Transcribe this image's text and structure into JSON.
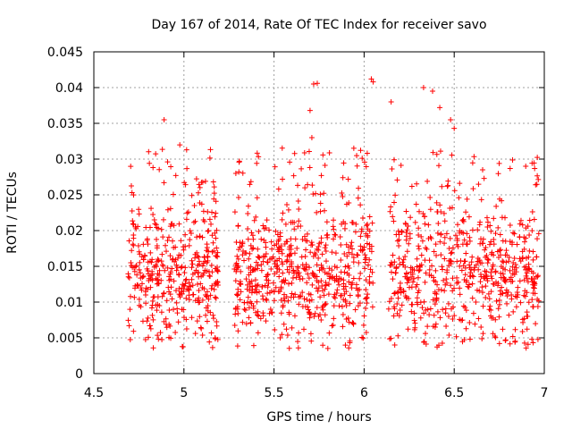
{
  "chart_data": {
    "type": "scatter",
    "title": "Day 167 of 2014, Rate Of TEC Index for receiver savo",
    "xlabel": "GPS time / hours",
    "ylabel": "ROTI / TECUs",
    "xlim": [
      4.5,
      7
    ],
    "ylim": [
      0,
      0.045
    ],
    "x_ticks": [
      4.5,
      5,
      5.5,
      6,
      6.5,
      7
    ],
    "x_tick_labels": [
      "4.5",
      "5",
      "5.5",
      "6",
      "6.5",
      "7"
    ],
    "y_ticks": [
      0,
      0.005,
      0.01,
      0.015,
      0.02,
      0.025,
      0.03,
      0.035,
      0.04,
      0.045
    ],
    "y_tick_labels": [
      "0",
      "0.005",
      "0.01",
      "0.015",
      "0.02",
      "0.025",
      "0.03",
      "0.035",
      "0.04",
      "0.045"
    ],
    "grid": true,
    "marker": "+",
    "marker_color": "#ff0000",
    "series": [
      {
        "segments": [
          {
            "x_start": 4.69,
            "x_end": 5.19
          },
          {
            "x_start": 5.28,
            "x_end": 6.05
          },
          {
            "x_start": 6.13,
            "x_end": 6.97
          }
        ],
        "notable_points": [
          {
            "x": 4.89,
            "y": 0.0355
          },
          {
            "x": 5.72,
            "y": 0.0405
          },
          {
            "x": 5.74,
            "y": 0.0406
          },
          {
            "x": 5.7,
            "y": 0.0368
          },
          {
            "x": 5.71,
            "y": 0.033
          },
          {
            "x": 6.04,
            "y": 0.0412
          },
          {
            "x": 6.05,
            "y": 0.0408
          },
          {
            "x": 6.15,
            "y": 0.038
          },
          {
            "x": 6.33,
            "y": 0.04
          },
          {
            "x": 6.38,
            "y": 0.0395
          },
          {
            "x": 6.42,
            "y": 0.0372
          },
          {
            "x": 6.48,
            "y": 0.0355
          },
          {
            "x": 6.5,
            "y": 0.0343
          },
          {
            "x": 6.17,
            "y": 0.004
          },
          {
            "x": 4.83,
            "y": 0.0036
          },
          {
            "x": 6.91,
            "y": 0.0041
          }
        ]
      }
    ]
  },
  "colors": {
    "marker": "#ff0000",
    "grid": "#a0a0a0",
    "axis": "#000000"
  }
}
